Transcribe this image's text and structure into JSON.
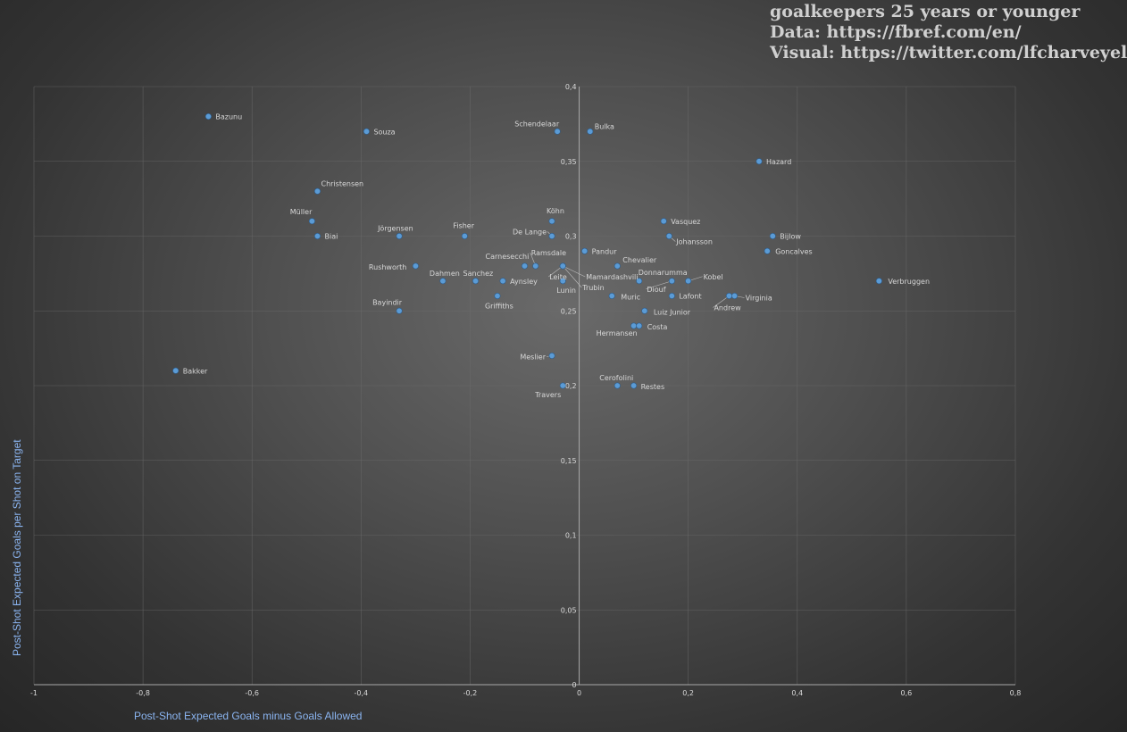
{
  "header": {
    "line1": "goalkeepers 25 years or younger",
    "line2": "Data: https://fbref.com/en/",
    "line3": "Visual: https://twitter.com/lfcharveyel"
  },
  "chart_data": {
    "type": "scatter",
    "xlabel": "Post-Shot Expected Goals minus Goals Allowed",
    "ylabel": "Post-Shot Expected Goals per Shot on Target",
    "xlim": [
      -1,
      0.8
    ],
    "ylim": [
      0,
      0.4
    ],
    "xticks": [
      "-1",
      "-0,8",
      "-0,6",
      "-0,4",
      "-0,2",
      "0",
      "0,2",
      "0,4",
      "0,6",
      "0,8"
    ],
    "yticks": [
      "0",
      "0,05",
      "0,1",
      "0,15",
      "0,2",
      "0,25",
      "0,3",
      "0,35",
      "0,4"
    ],
    "grid": true,
    "point_color": "#5b9bd5",
    "points": [
      {
        "name": "Bazunu",
        "x": -0.68,
        "y": 0.38
      },
      {
        "name": "Souza",
        "x": -0.39,
        "y": 0.37
      },
      {
        "name": "Schendelaar",
        "x": -0.04,
        "y": 0.37
      },
      {
        "name": "Bulka",
        "x": 0.02,
        "y": 0.37
      },
      {
        "name": "Hazard",
        "x": 0.33,
        "y": 0.35
      },
      {
        "name": "Christensen",
        "x": -0.48,
        "y": 0.33
      },
      {
        "name": "Müller",
        "x": -0.49,
        "y": 0.31
      },
      {
        "name": "Biai",
        "x": -0.48,
        "y": 0.3
      },
      {
        "name": "Jörgensen",
        "x": -0.33,
        "y": 0.3
      },
      {
        "name": "Fisher",
        "x": -0.21,
        "y": 0.3
      },
      {
        "name": "Köhn",
        "x": -0.05,
        "y": 0.31
      },
      {
        "name": "De Lange",
        "x": -0.05,
        "y": 0.3
      },
      {
        "name": "Vasquez",
        "x": 0.155,
        "y": 0.31
      },
      {
        "name": "Johansson",
        "x": 0.165,
        "y": 0.3
      },
      {
        "name": "Bijlow",
        "x": 0.355,
        "y": 0.3
      },
      {
        "name": "Pandur",
        "x": 0.01,
        "y": 0.29
      },
      {
        "name": "Goncalves",
        "x": 0.345,
        "y": 0.29
      },
      {
        "name": "Rushworth",
        "x": -0.3,
        "y": 0.28
      },
      {
        "name": "Carnesecchi",
        "x": -0.1,
        "y": 0.28
      },
      {
        "name": "Ramsdale",
        "x": -0.08,
        "y": 0.28
      },
      {
        "name": "Chevalier",
        "x": 0.07,
        "y": 0.28
      },
      {
        "name": "Mamardashvili",
        "x": -0.03,
        "y": 0.28
      },
      {
        "name": "Leite",
        "x": -0.03,
        "y": 0.28
      },
      {
        "name": "Trubin",
        "x": -0.03,
        "y": 0.28
      },
      {
        "name": "Dahmen",
        "x": -0.25,
        "y": 0.27
      },
      {
        "name": "Sanchez",
        "x": -0.19,
        "y": 0.27
      },
      {
        "name": "Aynsley",
        "x": -0.14,
        "y": 0.27
      },
      {
        "name": "Lunin",
        "x": -0.03,
        "y": 0.27
      },
      {
        "name": "Donnarumma",
        "x": 0.11,
        "y": 0.27
      },
      {
        "name": "Kobel",
        "x": 0.2,
        "y": 0.27
      },
      {
        "name": "Diouf",
        "x": 0.17,
        "y": 0.27
      },
      {
        "name": "Verbruggen",
        "x": 0.55,
        "y": 0.27
      },
      {
        "name": "Griffiths",
        "x": -0.15,
        "y": 0.26
      },
      {
        "name": "Muric",
        "x": 0.06,
        "y": 0.26
      },
      {
        "name": "Lafont",
        "x": 0.17,
        "y": 0.26
      },
      {
        "name": "Andrew",
        "x": 0.275,
        "y": 0.26
      },
      {
        "name": "Virginia",
        "x": 0.285,
        "y": 0.26
      },
      {
        "name": "Bayindir",
        "x": -0.33,
        "y": 0.25
      },
      {
        "name": "Luiz Junior",
        "x": 0.12,
        "y": 0.25
      },
      {
        "name": "Hermansen",
        "x": 0.1,
        "y": 0.24
      },
      {
        "name": "Costa",
        "x": 0.11,
        "y": 0.24
      },
      {
        "name": "Meslier",
        "x": -0.05,
        "y": 0.22
      },
      {
        "name": "Bakker",
        "x": -0.74,
        "y": 0.21
      },
      {
        "name": "Travers",
        "x": -0.03,
        "y": 0.2
      },
      {
        "name": "Cerofolini",
        "x": 0.07,
        "y": 0.2
      },
      {
        "name": "Restes",
        "x": 0.1,
        "y": 0.2
      }
    ]
  }
}
